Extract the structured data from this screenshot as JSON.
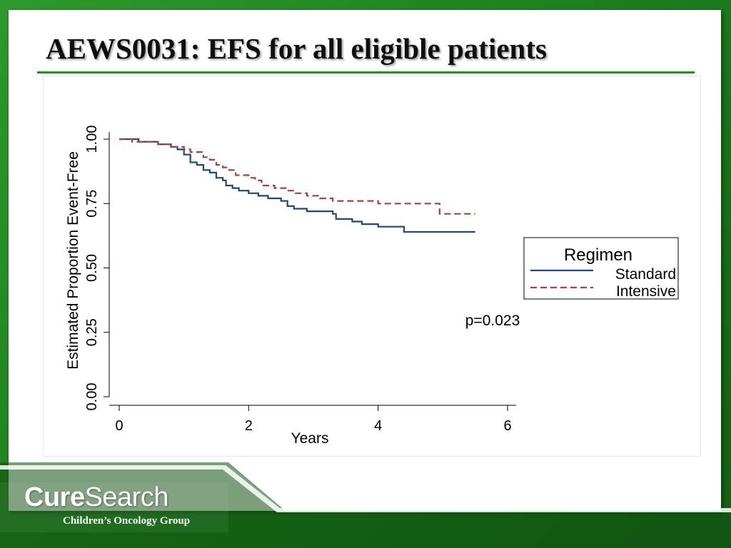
{
  "slide": {
    "title": "AEWS0031: EFS for all eligible patients",
    "colors": {
      "frame_green": "#1f7a1f",
      "accent_rule": "#2a8a2a"
    }
  },
  "chart_data": {
    "type": "line",
    "title": "",
    "xlabel": "Years",
    "ylabel": "Estimated Proportion Event-Free",
    "xlim": [
      0,
      6
    ],
    "ylim": [
      0,
      1
    ],
    "xticks": [
      "0",
      "2",
      "4",
      "6"
    ],
    "yticks": [
      "0.00",
      "0.25",
      "0.50",
      "0.75",
      "1.00"
    ],
    "grid": false,
    "legend": {
      "title": "Regimen",
      "placement": "right"
    },
    "annotation": "p=0.023",
    "series": [
      {
        "name": "Standard",
        "color": "#1e4a7a",
        "style": "solid",
        "step": true,
        "points": [
          [
            0,
            1.0
          ],
          [
            0.3,
            0.99
          ],
          [
            0.5,
            0.99
          ],
          [
            0.6,
            0.98
          ],
          [
            0.7,
            0.98
          ],
          [
            0.8,
            0.97
          ],
          [
            0.9,
            0.96
          ],
          [
            1.0,
            0.94
          ],
          [
            1.1,
            0.91
          ],
          [
            1.2,
            0.9
          ],
          [
            1.3,
            0.88
          ],
          [
            1.4,
            0.87
          ],
          [
            1.5,
            0.85
          ],
          [
            1.6,
            0.84
          ],
          [
            1.65,
            0.82
          ],
          [
            1.75,
            0.81
          ],
          [
            1.85,
            0.8
          ],
          [
            2.0,
            0.79
          ],
          [
            2.15,
            0.78
          ],
          [
            2.3,
            0.77
          ],
          [
            2.5,
            0.76
          ],
          [
            2.6,
            0.74
          ],
          [
            2.7,
            0.73
          ],
          [
            2.9,
            0.72
          ],
          [
            3.1,
            0.72
          ],
          [
            3.3,
            0.71
          ],
          [
            3.35,
            0.69
          ],
          [
            3.6,
            0.68
          ],
          [
            3.75,
            0.67
          ],
          [
            3.9,
            0.67
          ],
          [
            4.0,
            0.66
          ],
          [
            4.2,
            0.66
          ],
          [
            4.35,
            0.66
          ],
          [
            4.4,
            0.64
          ],
          [
            5.0,
            0.64
          ],
          [
            5.5,
            0.64
          ]
        ]
      },
      {
        "name": "Intensive",
        "color": "#a84040",
        "style": "dashed",
        "step": true,
        "points": [
          [
            0,
            1.0
          ],
          [
            0.2,
            0.99
          ],
          [
            0.5,
            0.99
          ],
          [
            0.6,
            0.98
          ],
          [
            0.8,
            0.97
          ],
          [
            1.0,
            0.96
          ],
          [
            1.1,
            0.95
          ],
          [
            1.2,
            0.95
          ],
          [
            1.3,
            0.93
          ],
          [
            1.4,
            0.92
          ],
          [
            1.5,
            0.9
          ],
          [
            1.6,
            0.89
          ],
          [
            1.7,
            0.88
          ],
          [
            1.8,
            0.86
          ],
          [
            2.0,
            0.85
          ],
          [
            2.1,
            0.84
          ],
          [
            2.2,
            0.82
          ],
          [
            2.4,
            0.81
          ],
          [
            2.6,
            0.8
          ],
          [
            2.7,
            0.79
          ],
          [
            2.9,
            0.78
          ],
          [
            3.1,
            0.77
          ],
          [
            3.3,
            0.76
          ],
          [
            3.5,
            0.76
          ],
          [
            3.8,
            0.76
          ],
          [
            4.0,
            0.75
          ],
          [
            4.4,
            0.75
          ],
          [
            4.9,
            0.75
          ],
          [
            4.95,
            0.71
          ],
          [
            5.5,
            0.71
          ]
        ]
      }
    ]
  },
  "footer": {
    "logo_bold": "Cure",
    "logo_light": "Search",
    "tagline": "Children’s Oncology Group"
  }
}
